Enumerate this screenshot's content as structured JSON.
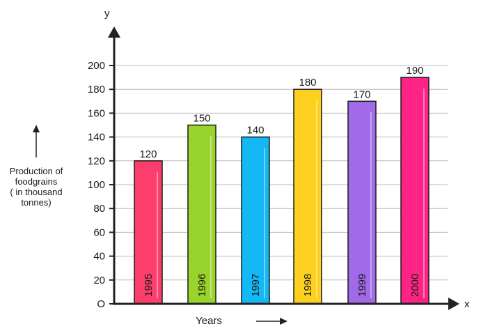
{
  "chart_data": {
    "type": "bar",
    "categories": [
      "1995",
      "1996",
      "1997",
      "1998",
      "1999",
      "2000"
    ],
    "values": [
      120,
      150,
      140,
      180,
      170,
      190
    ],
    "bar_colors": [
      "#fd3e6c",
      "#98d42b",
      "#13b8f5",
      "#fdd01f",
      "#a06ae8",
      "#fd2486"
    ],
    "yticks": [
      "O",
      "20",
      "40",
      "60",
      "80",
      "100",
      "120",
      "140",
      "160",
      "180",
      "200"
    ],
    "ylim": [
      0,
      200
    ],
    "xlabel": "Years",
    "ylabel_lines": [
      "Production of",
      "foodgrains",
      "( in thousand",
      "tonnes)"
    ],
    "x_axis_letter": "x",
    "y_axis_letter": "y",
    "grid": true
  }
}
